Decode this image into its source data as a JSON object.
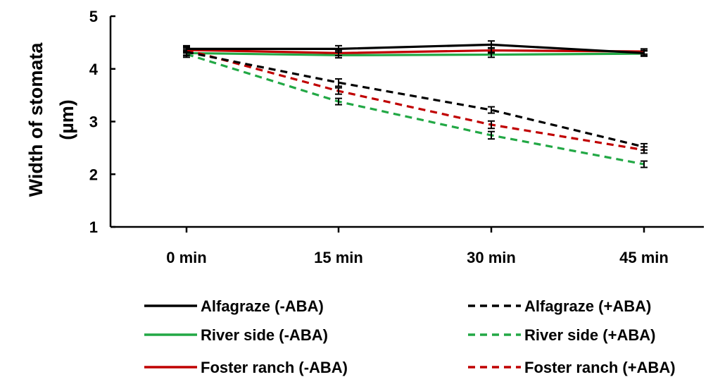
{
  "chart_data": {
    "type": "line",
    "title": "",
    "xlabel": "",
    "ylabel": "Width of stomata (µm)",
    "ylabel_lines": [
      "Width of stomata",
      "(µm)"
    ],
    "categories": [
      "0 min",
      "15 min",
      "30 min",
      "45 min"
    ],
    "ylim": [
      1,
      5
    ],
    "yticks": [
      1,
      2,
      3,
      4,
      5
    ],
    "grid": false,
    "legend_position": "bottom",
    "series": [
      {
        "name": "Alfagraze (-ABA)",
        "values": [
          4.38,
          4.38,
          4.46,
          4.3
        ],
        "errors": [
          0.06,
          0.06,
          0.07,
          0.05
        ],
        "color": "#000000",
        "dashed": false
      },
      {
        "name": "Alfagraze (+ABA)",
        "values": [
          4.32,
          3.74,
          3.22,
          2.52
        ],
        "errors": [
          0.06,
          0.07,
          0.06,
          0.06
        ],
        "color": "#000000",
        "dashed": true
      },
      {
        "name": "River side (-ABA)",
        "values": [
          4.3,
          4.26,
          4.27,
          4.29
        ],
        "errors": [
          0.05,
          0.05,
          0.05,
          0.05
        ],
        "color": "#22a845",
        "dashed": false
      },
      {
        "name": "River side (+ABA)",
        "values": [
          4.28,
          3.38,
          2.74,
          2.19
        ],
        "errors": [
          0.06,
          0.06,
          0.07,
          0.06
        ],
        "color": "#22a845",
        "dashed": true
      },
      {
        "name": "Foster ranch (-ABA)",
        "values": [
          4.36,
          4.3,
          4.35,
          4.33
        ],
        "errors": [
          0.05,
          0.05,
          0.05,
          0.05
        ],
        "color": "#c00000",
        "dashed": false
      },
      {
        "name": "Foster ranch (+ABA)",
        "values": [
          4.36,
          3.58,
          2.94,
          2.46
        ],
        "errors": [
          0.06,
          0.06,
          0.07,
          0.06
        ],
        "color": "#c00000",
        "dashed": true
      }
    ]
  }
}
